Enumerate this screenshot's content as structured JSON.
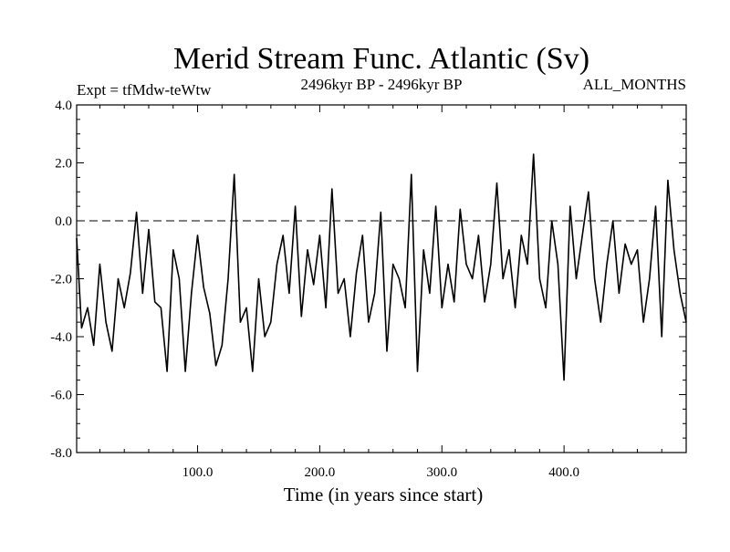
{
  "chart_data": {
    "type": "line",
    "title": "Merid Stream Func. Atlantic (Sv)",
    "subtitle_left": "Expt = tfMdw-teWtw",
    "subtitle_center": "2496kyr BP - 2496kyr BP",
    "subtitle_right": "ALL_MONTHS",
    "xlabel": "Time (in years since start)",
    "ylabel": "",
    "xlim": [
      1,
      500
    ],
    "ylim": [
      -8,
      4
    ],
    "xticks": [
      100,
      200,
      300,
      400
    ],
    "xtick_labels": [
      "100.0",
      "200.0",
      "300.0",
      "400.0"
    ],
    "yticks": [
      4,
      2,
      0,
      -2,
      -4,
      -6,
      -8
    ],
    "ytick_labels": [
      "4.0",
      "2.0",
      "0.0",
      "-2.0",
      "-4.0",
      "-6.0",
      "-8.0"
    ],
    "reference_line": {
      "y": 0,
      "style": "dashed"
    },
    "series": [
      {
        "name": "Merid Stream Func. Atlantic",
        "x": [
          1,
          5,
          10,
          15,
          20,
          25,
          30,
          35,
          40,
          45,
          50,
          55,
          60,
          65,
          70,
          75,
          80,
          85,
          90,
          95,
          100,
          105,
          110,
          115,
          120,
          125,
          130,
          135,
          140,
          145,
          150,
          155,
          160,
          165,
          170,
          175,
          180,
          185,
          190,
          195,
          200,
          205,
          210,
          215,
          220,
          225,
          230,
          235,
          240,
          245,
          250,
          255,
          260,
          265,
          270,
          275,
          280,
          285,
          290,
          295,
          300,
          305,
          310,
          315,
          320,
          325,
          330,
          335,
          340,
          345,
          350,
          355,
          360,
          365,
          370,
          375,
          380,
          385,
          390,
          395,
          400,
          405,
          410,
          415,
          420,
          425,
          430,
          435,
          440,
          445,
          450,
          455,
          460,
          465,
          470,
          475,
          480,
          485,
          490,
          495,
          500
        ],
        "values": [
          -0.6,
          -3.7,
          -3.0,
          -4.3,
          -1.5,
          -3.5,
          -4.5,
          -2.0,
          -3.0,
          -1.8,
          0.3,
          -2.5,
          -0.3,
          -2.8,
          -3.0,
          -5.2,
          -1.0,
          -2.0,
          -5.2,
          -2.5,
          -0.5,
          -2.3,
          -3.2,
          -5.0,
          -4.3,
          -2.0,
          1.6,
          -3.5,
          -3.0,
          -5.2,
          -2.0,
          -4.0,
          -3.5,
          -1.5,
          -0.5,
          -2.5,
          0.5,
          -3.3,
          -1.0,
          -2.2,
          -0.5,
          -3.0,
          1.1,
          -2.5,
          -2.0,
          -4.0,
          -1.8,
          -0.5,
          -3.5,
          -2.5,
          0.3,
          -4.5,
          -1.5,
          -2.0,
          -3.0,
          1.6,
          -5.2,
          -1.0,
          -2.5,
          0.5,
          -3.0,
          -1.5,
          -2.8,
          0.4,
          -1.5,
          -2.0,
          -0.5,
          -2.8,
          -1.5,
          1.3,
          -2.0,
          -1.0,
          -3.0,
          -0.5,
          -1.5,
          2.3,
          -2.0,
          -3.0,
          0.0,
          -1.5,
          -5.5,
          0.5,
          -2.0,
          -0.5,
          1.0,
          -2.0,
          -3.5,
          -1.5,
          0.0,
          -2.5,
          -0.8,
          -1.5,
          -1.0,
          -3.5,
          -2.0,
          0.5,
          -4.0,
          1.4,
          -1.0,
          -2.5,
          -3.5
        ]
      }
    ]
  }
}
